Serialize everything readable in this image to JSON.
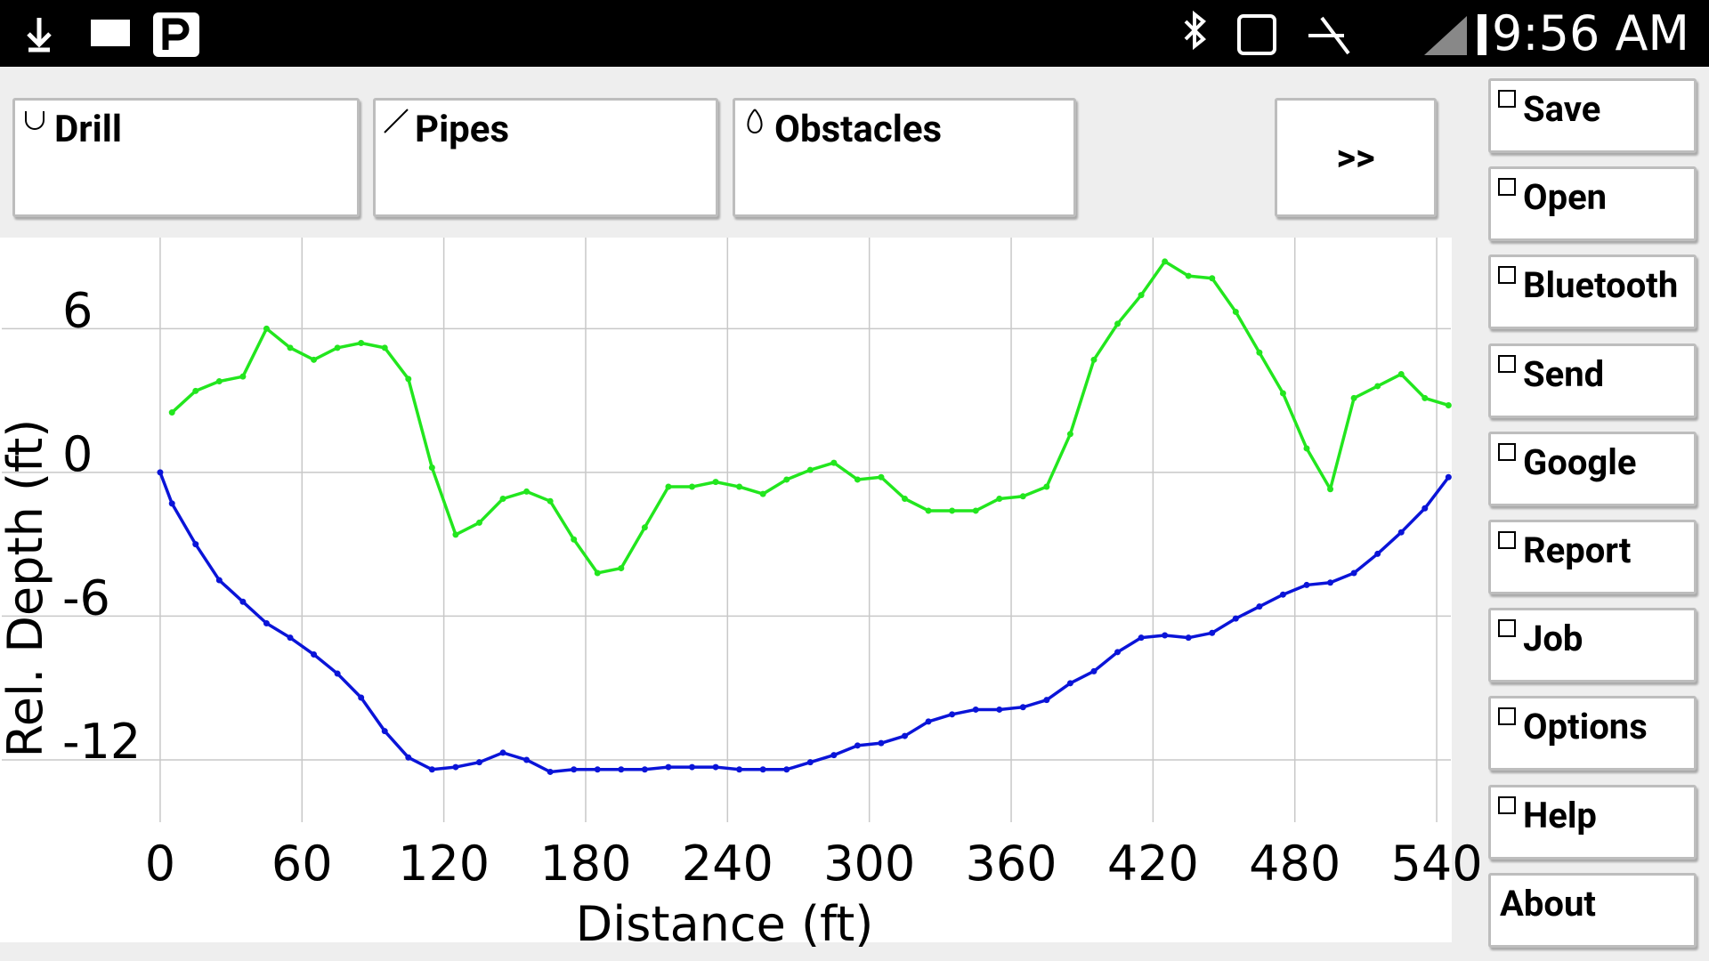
{
  "status_bar": {
    "time": "9:56 AM"
  },
  "toolbar": {
    "buttons": [
      "Drill",
      "Pipes",
      "Obstacles",
      ">>"
    ]
  },
  "sidebar": {
    "buttons": [
      "Save",
      "Open",
      "Bluetooth",
      "Send",
      "Google",
      "Report",
      "Job",
      "Options",
      "Help",
      "About"
    ]
  },
  "chart_data": {
    "type": "line",
    "xlabel": "Distance (ft)",
    "ylabel": "Rel. Depth (ft)",
    "x": [
      0,
      5,
      15,
      25,
      35,
      45,
      55,
      65,
      75,
      85,
      95,
      105,
      115,
      125,
      135,
      145,
      155,
      165,
      175,
      185,
      195,
      205,
      215,
      225,
      235,
      245,
      255,
      265,
      275,
      285,
      295,
      305,
      315,
      325,
      335,
      345,
      355,
      365,
      375,
      385,
      395,
      405,
      415,
      425,
      435,
      445,
      455,
      465,
      475,
      485,
      495,
      505,
      515,
      525,
      535,
      545
    ],
    "series": [
      {
        "color": "#0a14d8",
        "values": [
          0,
          -1.3,
          -3.0,
          -4.5,
          -5.4,
          -6.3,
          -6.9,
          -7.6,
          -8.4,
          -9.4,
          -10.8,
          -11.9,
          -12.4,
          -12.3,
          -12.1,
          -11.7,
          -12.0,
          -12.5,
          -12.4,
          -12.4,
          -12.4,
          -12.4,
          -12.3,
          -12.3,
          -12.3,
          -12.4,
          -12.4,
          -12.4,
          -12.1,
          -11.8,
          -11.4,
          -11.3,
          -11.0,
          -10.4,
          -10.1,
          -9.9,
          -9.9,
          -9.8,
          -9.5,
          -8.8,
          -8.3,
          -7.5,
          -6.9,
          -6.8,
          -6.9,
          -6.7,
          -6.1,
          -5.6,
          -5.1,
          -4.7,
          -4.6,
          -4.2,
          -3.4,
          -2.5,
          -1.5,
          -0.2
        ]
      },
      {
        "color": "#22e61e",
        "values": [
          null,
          2.5,
          3.4,
          3.8,
          4.0,
          6.0,
          5.2,
          4.7,
          5.2,
          5.4,
          5.2,
          3.9,
          0.2,
          -2.6,
          -2.1,
          -1.1,
          -0.8,
          -1.2,
          -2.8,
          -4.2,
          -4.0,
          -2.3,
          -0.6,
          -0.6,
          -0.4,
          -0.6,
          -0.9,
          -0.3,
          0.1,
          0.4,
          -0.3,
          -0.2,
          -1.1,
          -1.6,
          -1.6,
          -1.6,
          -1.1,
          -1.0,
          -0.6,
          1.6,
          4.7,
          6.2,
          7.4,
          8.8,
          8.2,
          8.1,
          6.7,
          5.0,
          3.3,
          1.0,
          -0.7,
          3.1,
          3.6,
          4.1,
          3.1,
          2.8
        ]
      }
    ],
    "xlim": [
      -67,
      546
    ],
    "ylim": [
      -14.6,
      9.8
    ],
    "xticks": [
      0,
      60,
      120,
      180,
      240,
      300,
      360,
      420,
      480,
      540
    ],
    "yticks": [
      -12,
      -6,
      0,
      6
    ],
    "grid": true
  }
}
